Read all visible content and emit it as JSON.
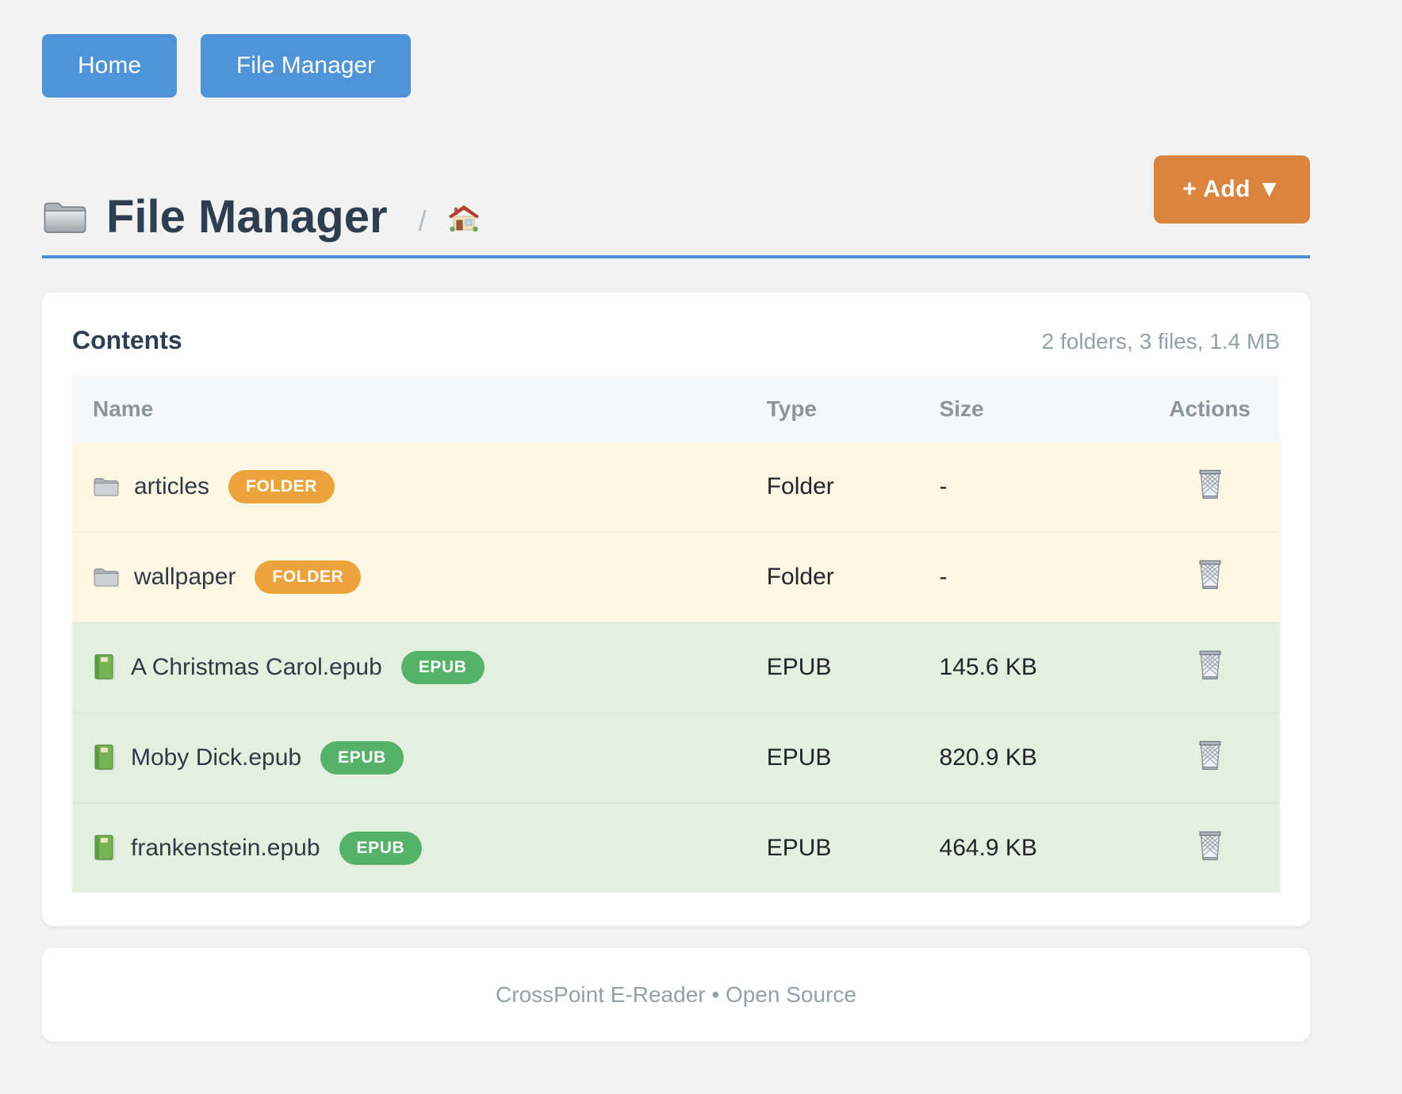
{
  "nav": {
    "home_label": "Home",
    "file_manager_label": "File Manager"
  },
  "header": {
    "title": "File Manager",
    "title_icon": "folder-icon",
    "breadcrumb_separator": "/",
    "breadcrumb_home_icon": "home-icon",
    "add_button_label": "+ Add ▼"
  },
  "card": {
    "title": "Contents",
    "summary": "2 folders, 3 files, 1.4 MB",
    "table": {
      "headers": [
        "Name",
        "Type",
        "Size",
        "Actions"
      ],
      "action_icon": "trash-icon",
      "rows": [
        {
          "name": "articles",
          "badge": "FOLDER",
          "type": "Folder",
          "size": "-",
          "kind": "folder",
          "icon": "folder-icon"
        },
        {
          "name": "wallpaper",
          "badge": "FOLDER",
          "type": "Folder",
          "size": "-",
          "kind": "folder",
          "icon": "folder-icon"
        },
        {
          "name": "A Christmas Carol.epub",
          "badge": "EPUB",
          "type": "EPUB",
          "size": "145.6 KB",
          "kind": "epub",
          "icon": "green-book-icon"
        },
        {
          "name": "Moby Dick.epub",
          "badge": "EPUB",
          "type": "EPUB",
          "size": "820.9 KB",
          "kind": "epub",
          "icon": "green-book-icon"
        },
        {
          "name": "frankenstein.epub",
          "badge": "EPUB",
          "type": "EPUB",
          "size": "464.9 KB",
          "kind": "epub",
          "icon": "green-book-icon"
        }
      ]
    }
  },
  "footer": {
    "text": "CrossPoint E-Reader • Open Source"
  },
  "colors": {
    "page_bg": "#f2f2f2",
    "accent_blue": "#4f94d8",
    "rule_blue": "#4a90d9",
    "accent_orange": "#d9853e",
    "badge_orange": "#eca33c",
    "badge_green": "#57b269",
    "row_folder_bg": "#fdf6e2",
    "row_epub_bg": "#e3f0e0",
    "table_header_bg": "#f6f7f9",
    "heading_dark": "#2c3e50",
    "muted_gray": "#95a0a6",
    "text_dark": "#212529",
    "name_dark": "#2e3a46"
  }
}
